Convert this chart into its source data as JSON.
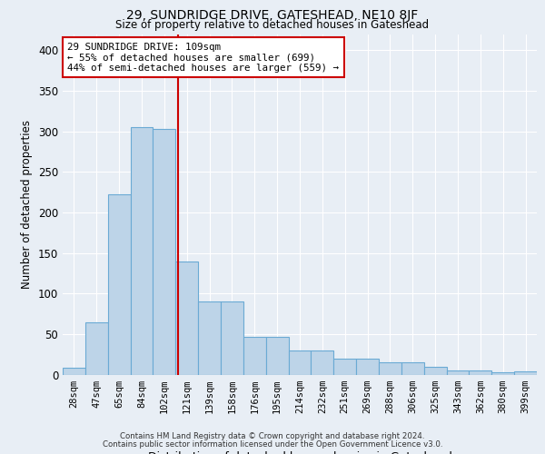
{
  "title": "29, SUNDRIDGE DRIVE, GATESHEAD, NE10 8JF",
  "subtitle": "Size of property relative to detached houses in Gateshead",
  "xlabel": "Distribution of detached houses by size in Gateshead",
  "ylabel": "Number of detached properties",
  "categories": [
    "28sqm",
    "47sqm",
    "65sqm",
    "84sqm",
    "102sqm",
    "121sqm",
    "139sqm",
    "158sqm",
    "176sqm",
    "195sqm",
    "214sqm",
    "232sqm",
    "251sqm",
    "269sqm",
    "288sqm",
    "306sqm",
    "325sqm",
    "343sqm",
    "362sqm",
    "380sqm",
    "399sqm"
  ],
  "bar_values": [
    8,
    64,
    222,
    305,
    303,
    140,
    90,
    90,
    46,
    46,
    30,
    30,
    20,
    20,
    15,
    15,
    10,
    5,
    5,
    3,
    4
  ],
  "bar_color": "#bdd4e8",
  "bar_edge_color": "#6aaad4",
  "vline_x": 4.6,
  "vline_color": "#cc0000",
  "annotation_text": "29 SUNDRIDGE DRIVE: 109sqm\n← 55% of detached houses are smaller (699)\n44% of semi-detached houses are larger (559) →",
  "annotation_box_color": "#ffffff",
  "annotation_box_edge": "#cc0000",
  "bg_color": "#e8eef5",
  "plot_bg_color": "#e8eef5",
  "footer1": "Contains HM Land Registry data © Crown copyright and database right 2024.",
  "footer2": "Contains public sector information licensed under the Open Government Licence v3.0.",
  "ylim": [
    0,
    420
  ],
  "yticks": [
    0,
    50,
    100,
    150,
    200,
    250,
    300,
    350,
    400
  ]
}
